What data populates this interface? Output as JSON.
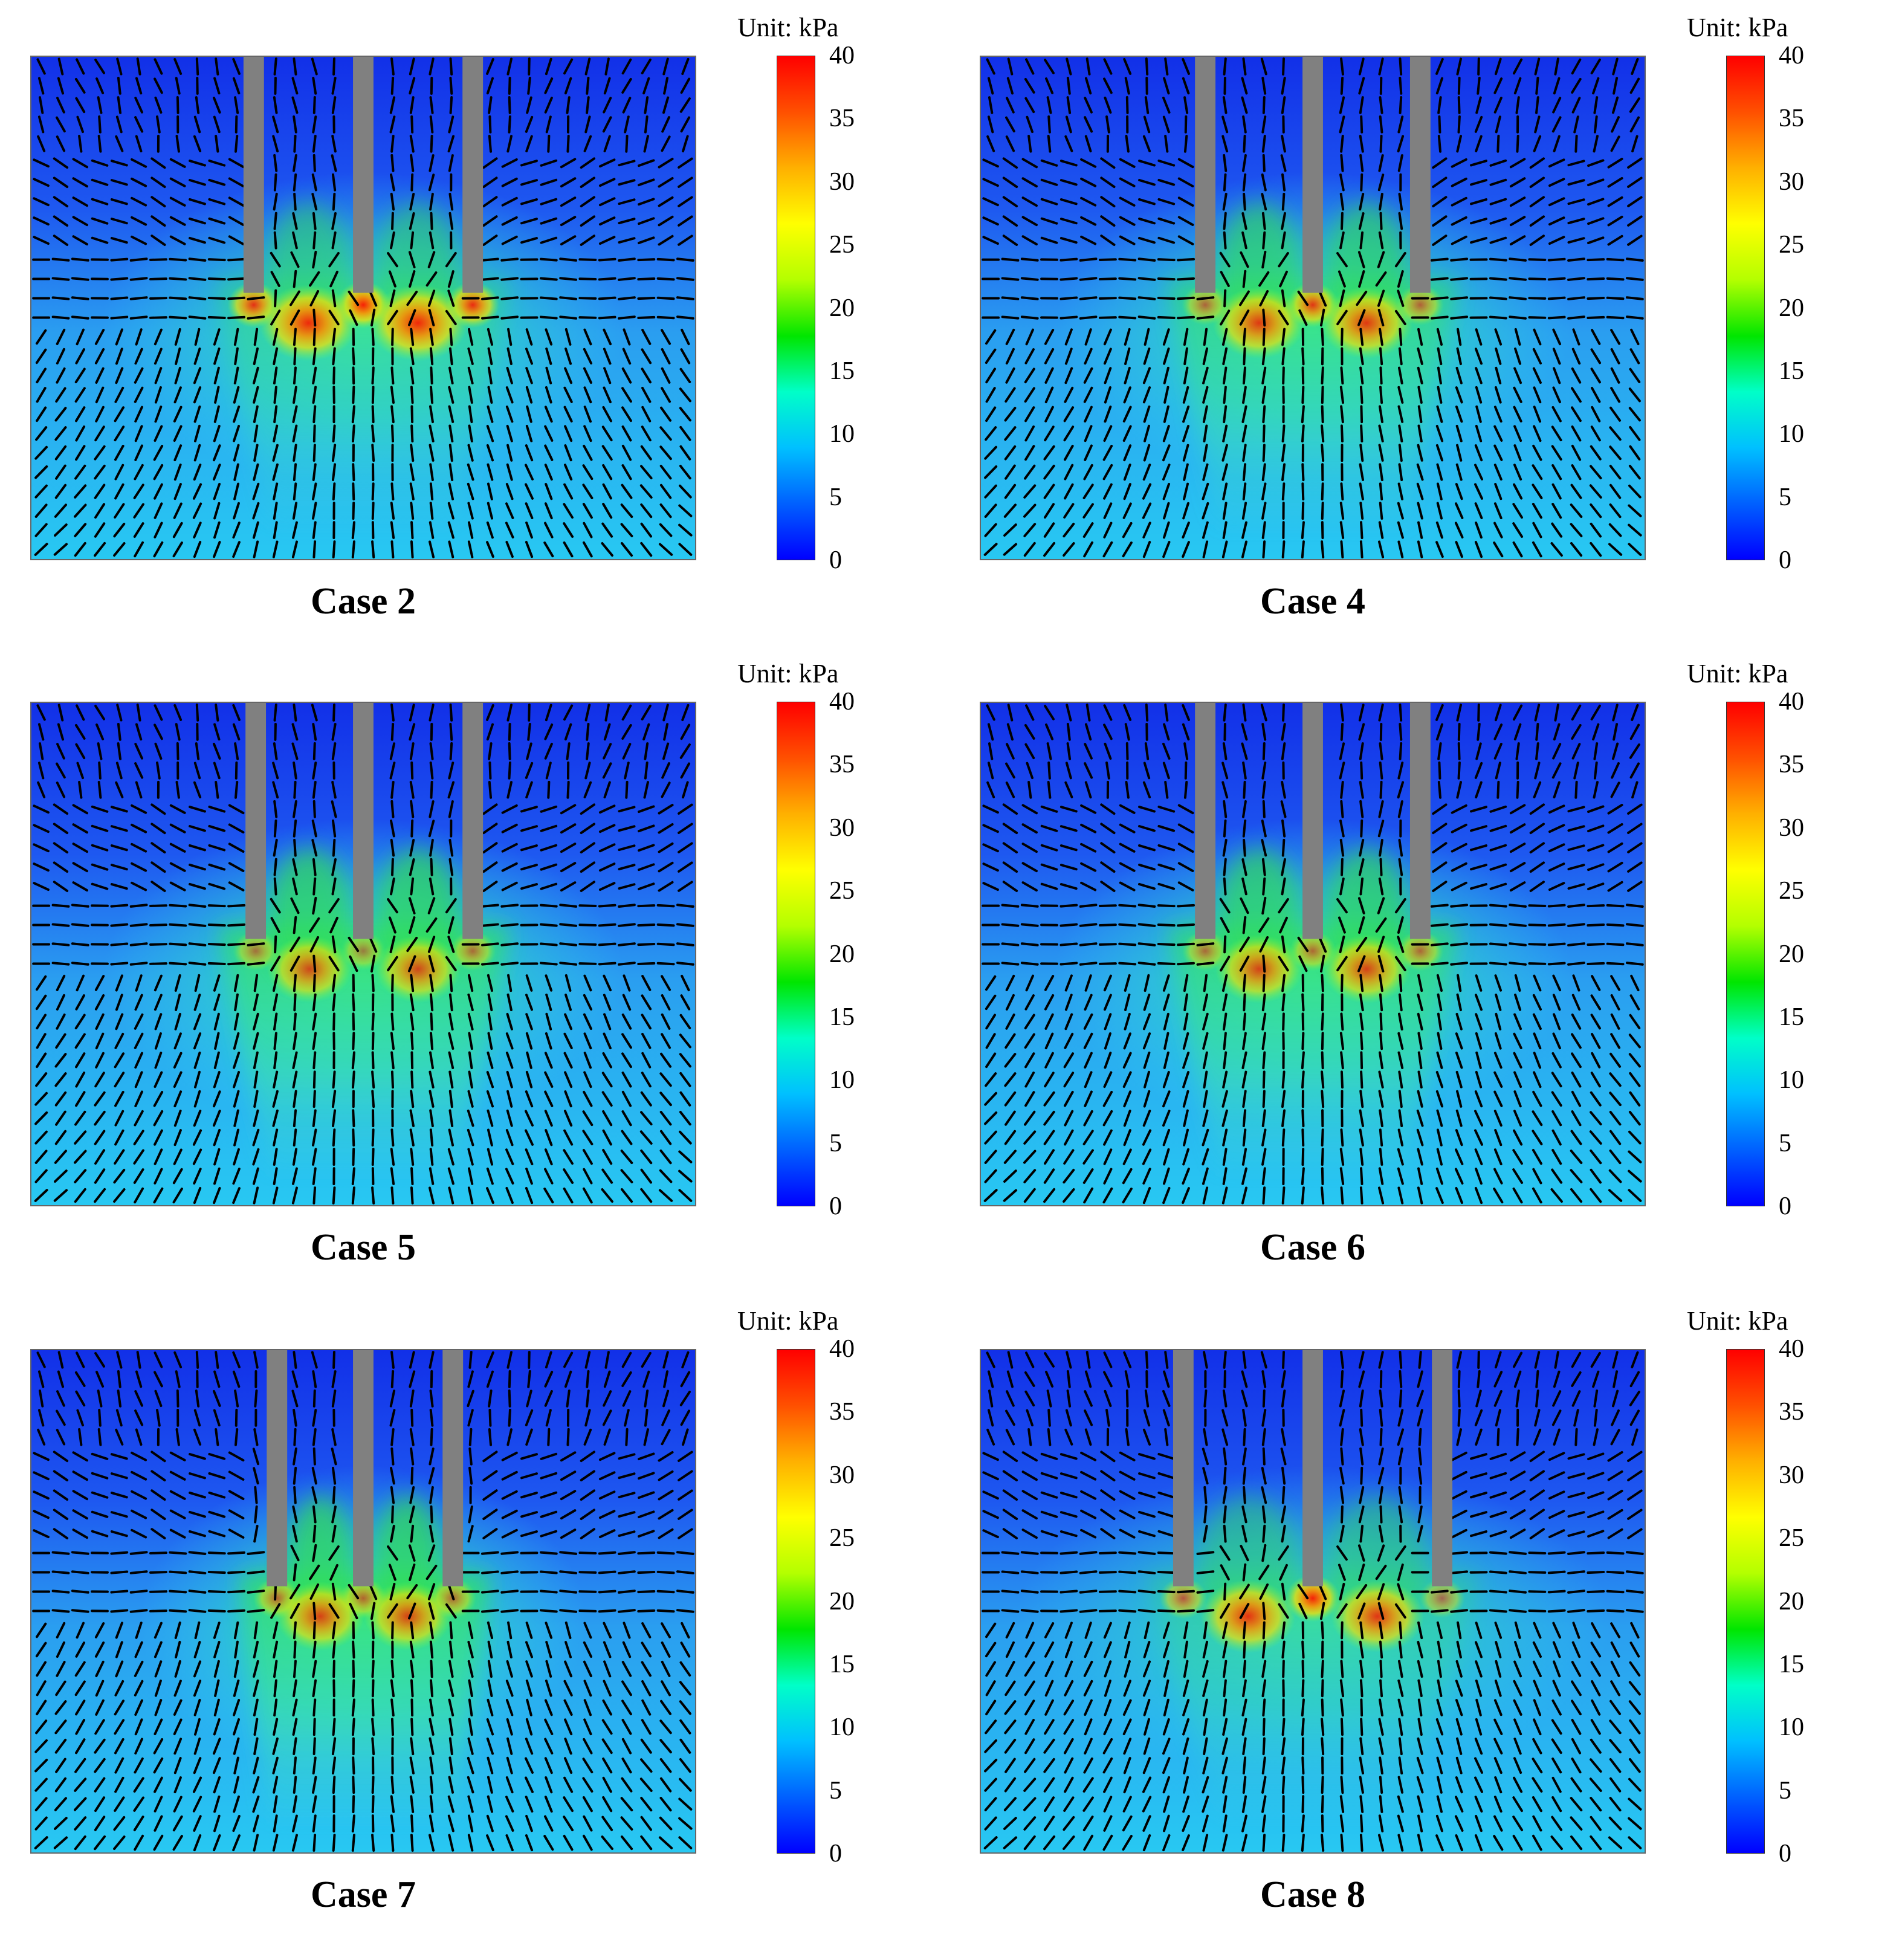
{
  "colorbar": {
    "unit_label": "Unit: kPa",
    "ticks": [
      "40",
      "35",
      "30",
      "25",
      "20",
      "15",
      "10",
      "5",
      "0"
    ],
    "min": 0,
    "max": 40,
    "colors": [
      "#0000ff",
      "#0060ff",
      "#00c0ff",
      "#00ffc8",
      "#00e600",
      "#b4ff00",
      "#ffff00",
      "#ffb000",
      "#ff5000",
      "#ff0000"
    ]
  },
  "colors": {
    "pile": "#808080",
    "frame": "#666666",
    "field_low": "#1a3cf0",
    "field_mid": "#00d8ff",
    "field_high": "#ff2000",
    "vectors": "#000000"
  },
  "panels": [
    {
      "label": "Case 2",
      "piles": [
        0.335,
        0.5,
        0.665
      ],
      "pile_depth": 0.47,
      "hot": [
        0.87,
        0.96,
        0.9
      ],
      "glow": 0.85,
      "plume": 0.45
    },
    {
      "label": "Case 4",
      "piles": [
        0.338,
        0.5,
        0.662
      ],
      "pile_depth": 0.47,
      "hot": [
        0.6,
        0.85,
        0.62
      ],
      "glow": 0.9,
      "plume": 0.65
    },
    {
      "label": "Case 5",
      "piles": [
        0.338,
        0.5,
        0.665
      ],
      "pile_depth": 0.47,
      "hot": [
        0.55,
        0.5,
        0.58
      ],
      "glow": 0.9,
      "plume": 0.8
    },
    {
      "label": "Case 6",
      "piles": [
        0.338,
        0.5,
        0.662
      ],
      "pile_depth": 0.47,
      "hot": [
        0.58,
        0.6,
        0.6
      ],
      "glow": 0.9,
      "plume": 0.75
    },
    {
      "label": "Case 7",
      "piles": [
        0.37,
        0.5,
        0.635
      ],
      "pile_depth": 0.47,
      "hot": [
        0.62,
        0.62,
        0.6
      ],
      "glow": 0.9,
      "plume": 0.85
    },
    {
      "label": "Case 8",
      "piles": [
        0.305,
        0.5,
        0.695
      ],
      "pile_depth": 0.47,
      "hot": [
        0.65,
        0.95,
        0.55
      ],
      "glow": 0.75,
      "plume": 0.35
    }
  ]
}
